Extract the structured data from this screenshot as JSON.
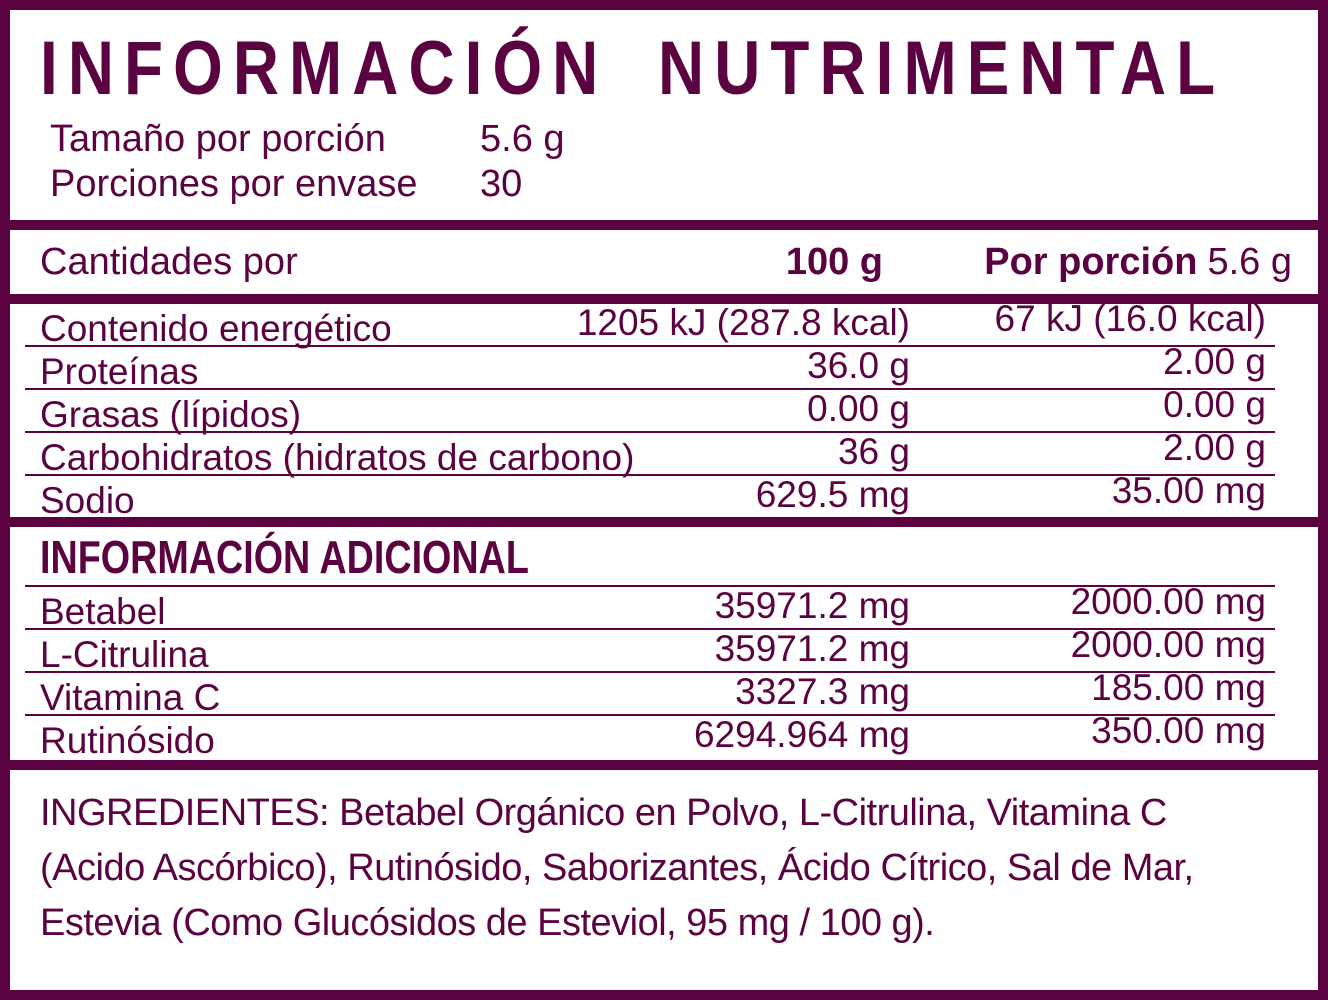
{
  "colors": {
    "ink": "#5A0340",
    "background": "#FFFFFF"
  },
  "header": {
    "title": "INFORMACIÓN NUTRIMENTAL",
    "serving_rows": [
      {
        "label": "Tamaño por porción",
        "value": "5.6 g"
      },
      {
        "label": "Porciones por envase",
        "value": "30"
      }
    ]
  },
  "nutrition_table": {
    "header": {
      "label": "Cantidades por",
      "col1": "100 g",
      "col2_bold": "Por porción",
      "col2_value": "5.6 g"
    },
    "rows": [
      {
        "label": "Contenido energético",
        "per_100g": "1205 kJ (287.8 kcal)",
        "per_portion": "67 kJ (16.0 kcal)"
      },
      {
        "label": "Proteínas",
        "per_100g": "36.0 g",
        "per_portion": "2.00 g"
      },
      {
        "label": "Grasas (lípidos)",
        "per_100g": "0.00 g",
        "per_portion": "0.00 g"
      },
      {
        "label": "Carbohidratos (hidratos de carbono)",
        "per_100g": "36 g",
        "per_portion": "2.00 g"
      },
      {
        "label": "Sodio",
        "per_100g": "629.5 mg",
        "per_portion": "35.00 mg"
      }
    ]
  },
  "additional_info": {
    "title": "INFORMACIÓN ADICIONAL",
    "rows": [
      {
        "label": "Betabel",
        "per_100g": "35971.2 mg",
        "per_portion": "2000.00 mg"
      },
      {
        "label": "L-Citrulina",
        "per_100g": "35971.2 mg",
        "per_portion": "2000.00 mg"
      },
      {
        "label": "Vitamina C",
        "per_100g": "3327.3 mg",
        "per_portion": "185.00 mg"
      },
      {
        "label": "Rutinósido",
        "per_100g": "6294.964 mg",
        "per_portion": "350.00 mg"
      }
    ]
  },
  "ingredients": {
    "lines": [
      "INGREDIENTES: Betabel Orgánico en Polvo, L-Citrulina, Vitamina C",
      "(Acido Ascórbico), Rutinósido, Saborizantes, Ácido Cítrico, Sal de Mar,",
      "Estevia (Como Glucósidos de Esteviol, 95 mg / 100 g)."
    ]
  }
}
